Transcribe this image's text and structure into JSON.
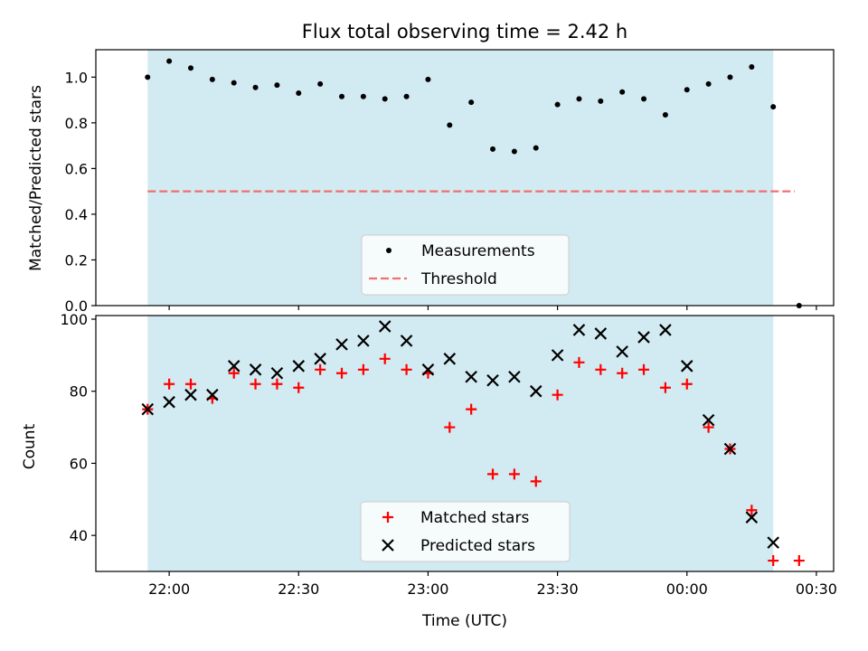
{
  "chart_data": [
    {
      "type": "scatter",
      "title": "Flux total observing time = 2.42 h",
      "xlabel": "",
      "ylabel": "Matched/Predicted stars",
      "ylim": [
        0,
        1.12
      ],
      "xlim": [
        "21:43",
        "00:34"
      ],
      "yticks": [
        "0.0",
        "0.2",
        "0.4",
        "0.6",
        "0.8",
        "1.0"
      ],
      "shaded_interval": [
        "21:55",
        "00:20"
      ],
      "shade_color": "#add8e6",
      "grid": false,
      "legend_position": "lower center",
      "series": [
        {
          "name": "Measurements",
          "marker": "dot",
          "color": "#000000",
          "points": [
            {
              "x": "21:55",
              "y": 1.0
            },
            {
              "x": "22:00",
              "y": 1.07
            },
            {
              "x": "22:05",
              "y": 1.04
            },
            {
              "x": "22:10",
              "y": 0.99
            },
            {
              "x": "22:15",
              "y": 0.975
            },
            {
              "x": "22:20",
              "y": 0.955
            },
            {
              "x": "22:25",
              "y": 0.965
            },
            {
              "x": "22:30",
              "y": 0.93
            },
            {
              "x": "22:35",
              "y": 0.97
            },
            {
              "x": "22:40",
              "y": 0.915
            },
            {
              "x": "22:45",
              "y": 0.915
            },
            {
              "x": "22:50",
              "y": 0.905
            },
            {
              "x": "22:55",
              "y": 0.915
            },
            {
              "x": "23:00",
              "y": 0.99
            },
            {
              "x": "23:05",
              "y": 0.79
            },
            {
              "x": "23:10",
              "y": 0.89
            },
            {
              "x": "23:15",
              "y": 0.685
            },
            {
              "x": "23:20",
              "y": 0.675
            },
            {
              "x": "23:25",
              "y": 0.69
            },
            {
              "x": "23:30",
              "y": 0.88
            },
            {
              "x": "23:35",
              "y": 0.905
            },
            {
              "x": "23:40",
              "y": 0.895
            },
            {
              "x": "23:45",
              "y": 0.935
            },
            {
              "x": "23:50",
              "y": 0.905
            },
            {
              "x": "23:55",
              "y": 0.835
            },
            {
              "x": "00:00",
              "y": 0.945
            },
            {
              "x": "00:05",
              "y": 0.97
            },
            {
              "x": "00:10",
              "y": 1.0
            },
            {
              "x": "00:15",
              "y": 1.045
            },
            {
              "x": "00:20",
              "y": 0.87
            },
            {
              "x": "00:26",
              "y": 0.0
            }
          ]
        },
        {
          "name": "Threshold",
          "style": "dashed-line",
          "color": "#f07070",
          "points": [
            {
              "x": "21:55",
              "y": 0.5
            },
            {
              "x": "00:25",
              "y": 0.5
            }
          ]
        }
      ]
    },
    {
      "type": "scatter",
      "title": "",
      "xlabel": "Time (UTC)",
      "ylabel": "Count",
      "ylim": [
        30,
        101
      ],
      "xlim": [
        "21:43",
        "00:34"
      ],
      "xticks": [
        "22:00",
        "22:30",
        "23:00",
        "23:30",
        "00:00",
        "00:30"
      ],
      "yticks": [
        "40",
        "60",
        "80",
        "100"
      ],
      "shaded_interval": [
        "21:55",
        "00:20"
      ],
      "shade_color": "#add8e6",
      "grid": false,
      "legend_position": "lower center",
      "series": [
        {
          "name": "Matched stars",
          "marker": "plus",
          "color": "#ff0000",
          "points": [
            {
              "x": "21:55",
              "y": 75
            },
            {
              "x": "22:00",
              "y": 82
            },
            {
              "x": "22:05",
              "y": 82
            },
            {
              "x": "22:10",
              "y": 78
            },
            {
              "x": "22:15",
              "y": 85
            },
            {
              "x": "22:20",
              "y": 82
            },
            {
              "x": "22:25",
              "y": 82
            },
            {
              "x": "22:30",
              "y": 81
            },
            {
              "x": "22:35",
              "y": 86
            },
            {
              "x": "22:40",
              "y": 85
            },
            {
              "x": "22:45",
              "y": 86
            },
            {
              "x": "22:50",
              "y": 89
            },
            {
              "x": "22:55",
              "y": 86
            },
            {
              "x": "23:00",
              "y": 85
            },
            {
              "x": "23:05",
              "y": 70
            },
            {
              "x": "23:10",
              "y": 75
            },
            {
              "x": "23:15",
              "y": 57
            },
            {
              "x": "23:20",
              "y": 57
            },
            {
              "x": "23:25",
              "y": 55
            },
            {
              "x": "23:30",
              "y": 79
            },
            {
              "x": "23:35",
              "y": 88
            },
            {
              "x": "23:40",
              "y": 86
            },
            {
              "x": "23:45",
              "y": 85
            },
            {
              "x": "23:50",
              "y": 86
            },
            {
              "x": "23:55",
              "y": 81
            },
            {
              "x": "00:00",
              "y": 82
            },
            {
              "x": "00:05",
              "y": 70
            },
            {
              "x": "00:10",
              "y": 64
            },
            {
              "x": "00:15",
              "y": 47
            },
            {
              "x": "00:20",
              "y": 33
            },
            {
              "x": "00:26",
              "y": 33
            }
          ]
        },
        {
          "name": "Predicted stars",
          "marker": "x",
          "color": "#000000",
          "points": [
            {
              "x": "21:55",
              "y": 75
            },
            {
              "x": "22:00",
              "y": 77
            },
            {
              "x": "22:05",
              "y": 79
            },
            {
              "x": "22:10",
              "y": 79
            },
            {
              "x": "22:15",
              "y": 87
            },
            {
              "x": "22:20",
              "y": 86
            },
            {
              "x": "22:25",
              "y": 85
            },
            {
              "x": "22:30",
              "y": 87
            },
            {
              "x": "22:35",
              "y": 89
            },
            {
              "x": "22:40",
              "y": 93
            },
            {
              "x": "22:45",
              "y": 94
            },
            {
              "x": "22:50",
              "y": 98
            },
            {
              "x": "22:55",
              "y": 94
            },
            {
              "x": "23:00",
              "y": 86
            },
            {
              "x": "23:05",
              "y": 89
            },
            {
              "x": "23:10",
              "y": 84
            },
            {
              "x": "23:15",
              "y": 83
            },
            {
              "x": "23:20",
              "y": 84
            },
            {
              "x": "23:25",
              "y": 80
            },
            {
              "x": "23:30",
              "y": 90
            },
            {
              "x": "23:35",
              "y": 97
            },
            {
              "x": "23:40",
              "y": 96
            },
            {
              "x": "23:45",
              "y": 91
            },
            {
              "x": "23:50",
              "y": 95
            },
            {
              "x": "23:55",
              "y": 97
            },
            {
              "x": "00:00",
              "y": 87
            },
            {
              "x": "00:05",
              "y": 72
            },
            {
              "x": "00:10",
              "y": 64
            },
            {
              "x": "00:15",
              "y": 45
            },
            {
              "x": "00:20",
              "y": 38
            }
          ]
        }
      ]
    }
  ]
}
